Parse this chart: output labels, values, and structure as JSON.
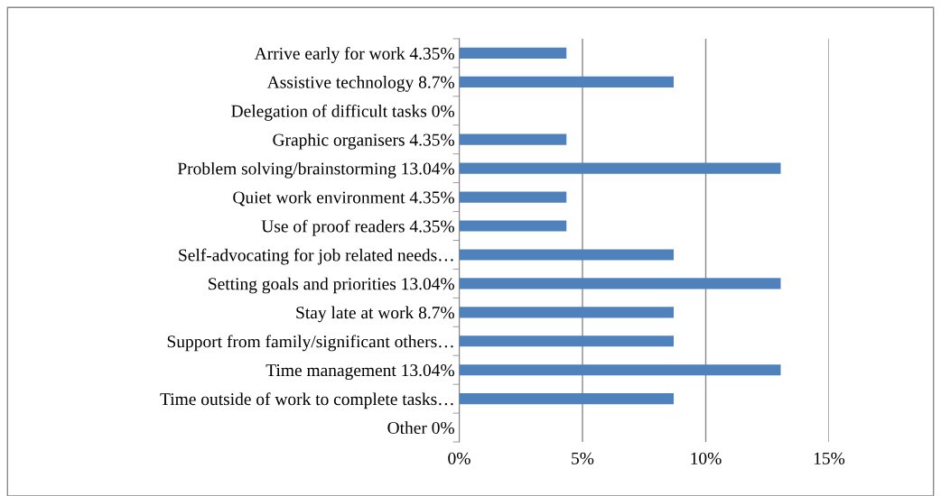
{
  "chart_data": {
    "type": "bar",
    "orientation": "horizontal",
    "categories": [
      "Arrive early for work 4.35%",
      "Assistive technology 8.7%",
      "Delegation of difficult tasks 0%",
      "Graphic organisers 4.35%",
      "Problem solving/brainstorming 13.04%",
      "Quiet work environment 4.35%",
      "Use of proof readers 4.35%",
      "Self-advocating for job related needs…",
      "Setting goals and priorities 13.04%",
      "Stay late at work 8.7%",
      "Support from family/significant others…",
      "Time management 13.04%",
      "Time outside of work to complete tasks…",
      "Other 0%"
    ],
    "values": [
      4.35,
      8.7,
      0,
      4.35,
      13.04,
      4.35,
      4.35,
      8.7,
      13.04,
      8.7,
      8.7,
      13.04,
      8.7,
      0
    ],
    "color": "#4f81bd",
    "xlim": [
      0,
      15
    ],
    "xticks": [
      {
        "value": 0,
        "label": "0%"
      },
      {
        "value": 5,
        "label": "5%"
      },
      {
        "value": 10,
        "label": "10%"
      },
      {
        "value": 15,
        "label": "15%"
      }
    ],
    "grid": "x",
    "legend": false
  }
}
